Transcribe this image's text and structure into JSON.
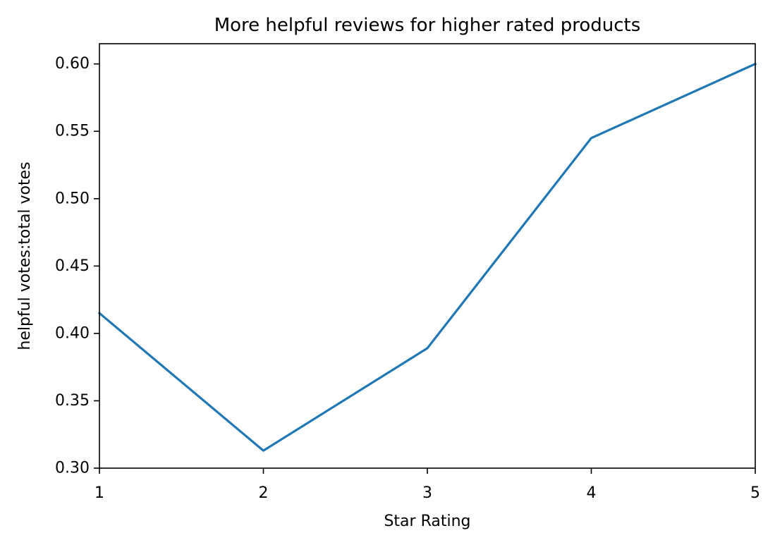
{
  "chart_data": {
    "type": "line",
    "title": "More helpful reviews for higher rated products",
    "xlabel": "Star Rating",
    "ylabel": "helpful votes:total votes",
    "x": [
      1,
      2,
      3,
      4,
      5
    ],
    "series": [
      {
        "values": [
          0.415,
          0.313,
          0.389,
          0.545,
          0.6
        ],
        "color": "#1f77b4"
      }
    ],
    "xlim": [
      1,
      5
    ],
    "ylim": [
      0.3,
      0.615
    ],
    "xticks": [
      1,
      2,
      3,
      4,
      5
    ],
    "xtick_labels": [
      "1",
      "2",
      "3",
      "4",
      "5"
    ],
    "yticks": [
      0.3,
      0.35,
      0.4,
      0.45,
      0.5,
      0.55,
      0.6
    ],
    "ytick_labels": [
      "0.30",
      "0.35",
      "0.40",
      "0.45",
      "0.50",
      "0.55",
      "0.60"
    ],
    "grid": false,
    "legend": "none"
  }
}
